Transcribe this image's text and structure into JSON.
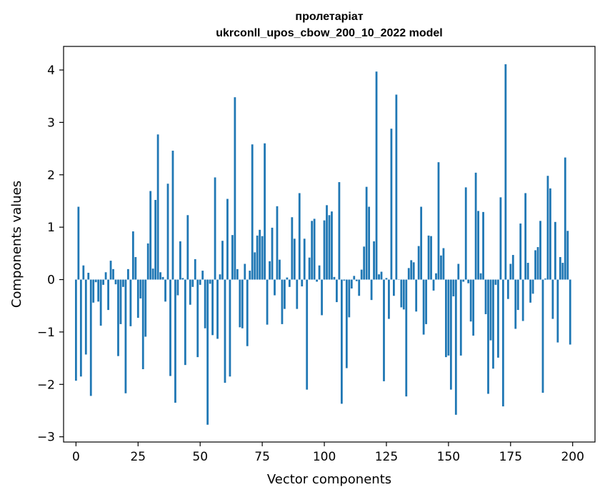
{
  "chart_data": {
    "type": "bar",
    "title": "пролетаріат",
    "subtitle": "ukrconll_upos_cbow_200_10_2022 model",
    "xlabel": "Vector components",
    "ylabel": "Components values",
    "xlim": [
      -5,
      209
    ],
    "ylim": [
      -3.1,
      4.45
    ],
    "xticks": [
      0,
      25,
      50,
      75,
      100,
      125,
      150,
      175,
      200
    ],
    "yticks": [
      -3,
      -2,
      -1,
      0,
      1,
      2,
      3,
      4
    ],
    "grid": false,
    "bar_color": "#1f77b4",
    "x": [
      0,
      1,
      2,
      3,
      4,
      5,
      6,
      7,
      8,
      9,
      10,
      11,
      12,
      13,
      14,
      15,
      16,
      17,
      18,
      19,
      20,
      21,
      22,
      23,
      24,
      25,
      26,
      27,
      28,
      29,
      30,
      31,
      32,
      33,
      34,
      35,
      36,
      37,
      38,
      39,
      40,
      41,
      42,
      43,
      44,
      45,
      46,
      47,
      48,
      49,
      50,
      51,
      52,
      53,
      54,
      55,
      56,
      57,
      58,
      59,
      60,
      61,
      62,
      63,
      64,
      65,
      66,
      67,
      68,
      69,
      70,
      71,
      72,
      73,
      74,
      75,
      76,
      77,
      78,
      79,
      80,
      81,
      82,
      83,
      84,
      85,
      86,
      87,
      88,
      89,
      90,
      91,
      92,
      93,
      94,
      95,
      96,
      97,
      98,
      99,
      100,
      101,
      102,
      103,
      104,
      105,
      106,
      107,
      108,
      109,
      110,
      111,
      112,
      113,
      114,
      115,
      116,
      117,
      118,
      119,
      120,
      121,
      122,
      123,
      124,
      125,
      126,
      127,
      128,
      129,
      130,
      131,
      132,
      133,
      134,
      135,
      136,
      137,
      138,
      139,
      140,
      141,
      142,
      143,
      144,
      145,
      146,
      147,
      148,
      149,
      150,
      151,
      152,
      153,
      154,
      155,
      156,
      157,
      158,
      159,
      160,
      161,
      162,
      163,
      164,
      165,
      166,
      167,
      168,
      169,
      170,
      171,
      172,
      173,
      174,
      175,
      176,
      177,
      178,
      179,
      180,
      181,
      182,
      183,
      184,
      185,
      186,
      187,
      188,
      189,
      190,
      191,
      192,
      193,
      194,
      195,
      196,
      197,
      198,
      199
    ],
    "values": [
      -1.93,
      1.39,
      -1.85,
      0.27,
      -1.43,
      0.13,
      -2.22,
      -0.44,
      -0.05,
      -0.42,
      -0.88,
      -0.1,
      0.14,
      -0.58,
      0.36,
      0.2,
      -0.09,
      -1.46,
      -0.85,
      -0.14,
      -2.17,
      0.2,
      -0.89,
      0.92,
      0.43,
      -0.73,
      -0.36,
      -1.71,
      -1.09,
      0.69,
      1.69,
      0.21,
      1.52,
      2.77,
      0.14,
      0.05,
      -0.42,
      1.83,
      -1.84,
      2.46,
      -2.35,
      -0.3,
      0.73,
      0.03,
      -1.63,
      1.23,
      -0.48,
      -0.14,
      0.39,
      -1.48,
      -0.1,
      0.17,
      -0.93,
      -2.77,
      -0.08,
      -1.06,
      1.95,
      -1.13,
      0.1,
      0.74,
      -1.97,
      1.54,
      -1.85,
      0.85,
      3.48,
      0.2,
      -0.91,
      -0.93,
      0.3,
      -1.27,
      0.17,
      2.58,
      0.52,
      0.84,
      0.95,
      0.83,
      2.6,
      -0.86,
      0.35,
      0.99,
      -0.3,
      1.4,
      0.38,
      -0.85,
      -0.56,
      0.04,
      -0.14,
      1.19,
      0.78,
      -0.56,
      1.65,
      -0.13,
      0.78,
      -2.1,
      0.42,
      1.12,
      1.16,
      -0.04,
      0.27,
      -0.68,
      1.13,
      1.42,
      1.23,
      1.3,
      0.05,
      -0.43,
      1.86,
      -2.37,
      -0.02,
      -1.69,
      -0.72,
      -0.17,
      0.07,
      -0.03,
      -0.31,
      0.19,
      0.63,
      1.77,
      1.39,
      -0.39,
      0.73,
      3.97,
      0.1,
      0.15,
      -1.94,
      0.03,
      -0.75,
      2.88,
      -0.31,
      3.53,
      0.0,
      -0.53,
      -0.57,
      -2.23,
      0.22,
      0.37,
      0.33,
      -0.61,
      0.64,
      1.39,
      -1.05,
      -0.85,
      0.84,
      0.83,
      -0.21,
      0.12,
      2.24,
      0.46,
      0.6,
      -1.48,
      -1.45,
      -2.1,
      -0.32,
      -2.58,
      0.3,
      -1.45,
      -0.04,
      1.76,
      -0.07,
      -0.8,
      -1.07,
      2.04,
      1.31,
      0.12,
      1.29,
      -0.66,
      -2.18,
      -1.16,
      -1.7,
      -0.1,
      -1.49,
      1.57,
      -2.42,
      4.11,
      -0.37,
      0.3,
      0.47,
      -0.94,
      -0.58,
      1.07,
      -0.79,
      1.65,
      0.32,
      -0.44,
      -0.27,
      0.56,
      0.62,
      1.12,
      -2.16,
      0.02,
      1.98,
      1.74,
      -0.75,
      1.1,
      -1.2,
      0.43,
      0.32,
      2.33,
      0.93,
      -1.24
    ]
  }
}
